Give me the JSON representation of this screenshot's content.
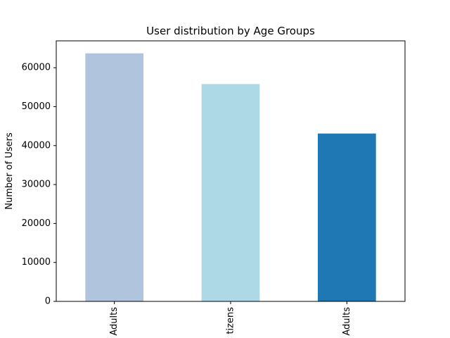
{
  "chart_data": {
    "type": "bar",
    "title": "User distribution by Age Groups",
    "xlabel": "",
    "ylabel": "Number of Users",
    "categories": [
      "Adults",
      "tizens",
      "Adults"
    ],
    "values": [
      63700,
      55800,
      43100
    ],
    "colors": [
      "#b0c4de",
      "#add8e6",
      "#1f77b4"
    ],
    "ylim": [
      0,
      66900
    ],
    "yticks": [
      0,
      10000,
      20000,
      30000,
      40000,
      50000,
      60000
    ],
    "ytick_labels": [
      "0",
      "10000",
      "20000",
      "30000",
      "40000",
      "50000",
      "60000"
    ],
    "grid": false,
    "legend": "none"
  }
}
